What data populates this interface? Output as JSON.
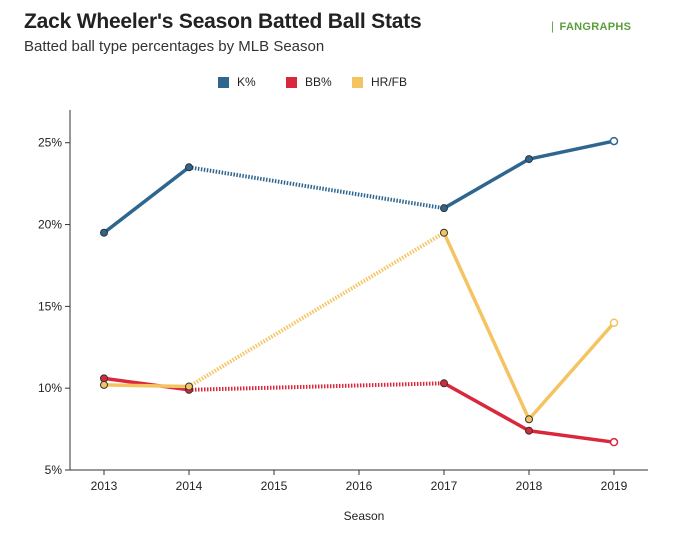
{
  "header": {
    "title": "Zack Wheeler's Season Batted Ball Stats",
    "subtitle": "Batted ball type percentages by MLB Season",
    "logo_text": "FANGRAPHS"
  },
  "chart_data": {
    "type": "line",
    "title": "Zack Wheeler's Season Batted Ball Stats",
    "subtitle": "Batted ball type percentages by MLB Season",
    "xlabel": "Season",
    "ylabel": "",
    "x": [
      2013,
      2014,
      2015,
      2016,
      2017,
      2018,
      2019
    ],
    "x_ticks": [
      "2013",
      "2014",
      "2015",
      "2016",
      "2017",
      "2018",
      "2019"
    ],
    "y_ticks": [
      "5%",
      "10%",
      "15%",
      "20%",
      "25%"
    ],
    "y_tick_values": [
      5,
      10,
      15,
      20,
      25
    ],
    "ylim": [
      5,
      27
    ],
    "grid": false,
    "legend_position": "top",
    "series": [
      {
        "name": "K%",
        "color": "#2f6690",
        "points": [
          [
            2013,
            19.5
          ],
          [
            2014,
            23.5
          ],
          [
            2017,
            21.0
          ],
          [
            2018,
            24.0
          ],
          [
            2019,
            25.1
          ]
        ],
        "gap_after": 2014
      },
      {
        "name": "BB%",
        "color": "#d9273c",
        "points": [
          [
            2013,
            10.6
          ],
          [
            2014,
            9.9
          ],
          [
            2017,
            10.3
          ],
          [
            2018,
            7.4
          ],
          [
            2019,
            6.7
          ]
        ],
        "gap_after": 2014
      },
      {
        "name": "HR/FB",
        "color": "#f5c462",
        "points": [
          [
            2013,
            10.2
          ],
          [
            2014,
            10.1
          ],
          [
            2017,
            19.5
          ],
          [
            2018,
            8.1
          ],
          [
            2019,
            14.0
          ]
        ],
        "gap_after": 2014
      }
    ]
  }
}
